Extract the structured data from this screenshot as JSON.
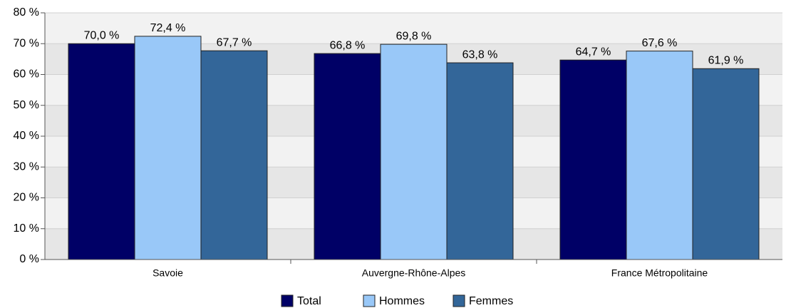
{
  "chart_data": {
    "type": "bar",
    "categories": [
      "Savoie",
      "Auvergne-Rhône-Alpes",
      "France Métropolitaine"
    ],
    "series": [
      {
        "name": "Total",
        "color": "#000066",
        "values": [
          70.0,
          66.8,
          64.7
        ],
        "value_labels": [
          "70,0 %",
          "66,8 %",
          "64,7 %"
        ]
      },
      {
        "name": "Hommes",
        "color": "#99c8f8",
        "values": [
          72.4,
          69.8,
          67.6
        ],
        "value_labels": [
          "72,4 %",
          "69,8 %",
          "67,6 %"
        ]
      },
      {
        "name": "Femmes",
        "color": "#336699",
        "values": [
          67.7,
          63.8,
          61.9
        ],
        "value_labels": [
          "67,7 %",
          "63,8 %",
          "61,9 %"
        ]
      }
    ],
    "ylim": [
      0,
      80
    ],
    "yticks": [
      {
        "value": 0,
        "label": "0 %"
      },
      {
        "value": 10,
        "label": "10 %"
      },
      {
        "value": 20,
        "label": "20 %"
      },
      {
        "value": 30,
        "label": "30 %"
      },
      {
        "value": 40,
        "label": "40 %"
      },
      {
        "value": 50,
        "label": "50 %"
      },
      {
        "value": 60,
        "label": "60 %"
      },
      {
        "value": 70,
        "label": "70 %"
      },
      {
        "value": 80,
        "label": "80 %"
      }
    ],
    "grid": true,
    "legend": "bottom"
  }
}
